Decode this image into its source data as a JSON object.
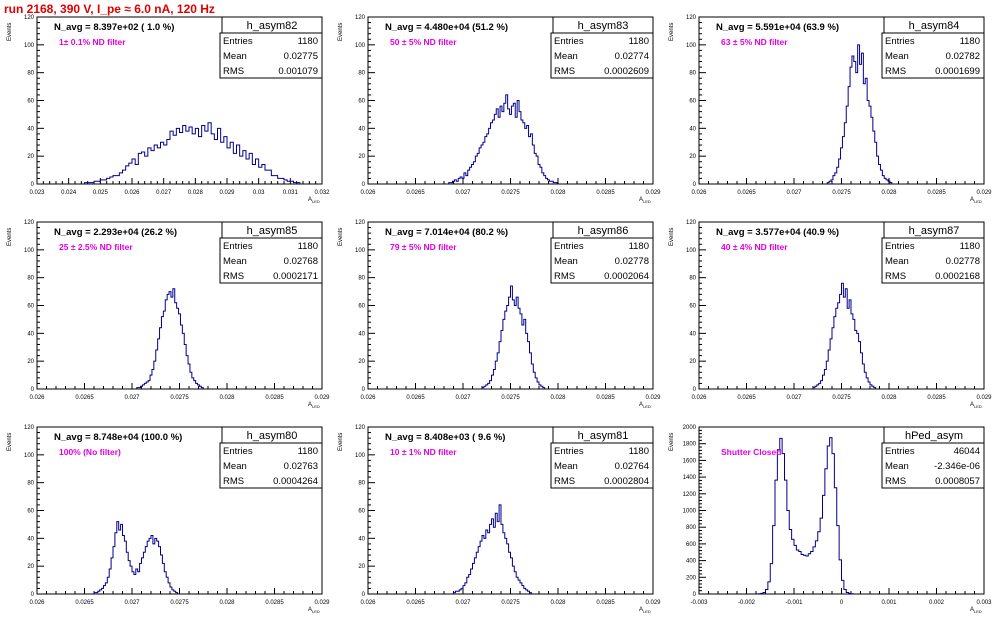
{
  "run_title": "run 2168,   390 V, I_pe ≈ 6.0 nA, 120 Hz",
  "colors": {
    "title": "#e00000",
    "annotation": "#e000e0",
    "histogram": "#00008b",
    "axis": "#000000"
  },
  "chart_data": [
    {
      "type": "histogram",
      "name": "h_asym82",
      "stats": {
        "entries_label": "Entries",
        "entries": "1180",
        "mean_label": "Mean",
        "mean": "0.02775",
        "rms_label": "RMS",
        "rms": "0.001079"
      },
      "navg": "N_avg = 8.397e+02 ( 1.0 %)",
      "annotation": "1± 0.1% ND filter",
      "ylabel": "Events",
      "xlabel": "A_LED",
      "xlim": [
        0.023,
        0.032
      ],
      "ylim": [
        0,
        120
      ],
      "xticks": [
        "0.023",
        "0.024",
        "0.025",
        "0.026",
        "0.027",
        "0.028",
        "0.029",
        "0.03",
        "0.031",
        "0.032"
      ],
      "yticks": [
        "0",
        "20",
        "40",
        "60",
        "80",
        "100",
        "120"
      ],
      "x_start": 0.0245,
      "bin_width": 0.0001,
      "counts": [
        1,
        1,
        1,
        2,
        2,
        3,
        3,
        4,
        5,
        6,
        6,
        8,
        10,
        13,
        15,
        18,
        14,
        22,
        23,
        20,
        26,
        24,
        28,
        26,
        30,
        28,
        32,
        38,
        35,
        40,
        37,
        42,
        38,
        41,
        36,
        40,
        34,
        42,
        38,
        44,
        36,
        32,
        40,
        30,
        34,
        26,
        30,
        22,
        28,
        20,
        24,
        18,
        22,
        14,
        18,
        12,
        14,
        10,
        10,
        6,
        6,
        4,
        4,
        3,
        2,
        2,
        1,
        1
      ]
    },
    {
      "type": "histogram",
      "name": "h_asym83",
      "stats": {
        "entries_label": "Entries",
        "entries": "1180",
        "mean_label": "Mean",
        "mean": "0.02774",
        "rms_label": "RMS",
        "rms": "0.0002609"
      },
      "navg": "N_avg = 4.480e+04 (51.2 %)",
      "annotation": "50 ± 5% ND filter",
      "ylabel": "Events",
      "xlabel": "A_LED",
      "xlim": [
        0.026,
        0.029
      ],
      "ylim": [
        0,
        120
      ],
      "xticks": [
        "0.026",
        "0.0265",
        "0.027",
        "0.0275",
        "0.028",
        "0.0285",
        "0.029"
      ],
      "yticks": [
        "0",
        "20",
        "40",
        "60",
        "80",
        "100",
        "120"
      ],
      "x_start": 0.02685,
      "bin_width": 2e-05,
      "counts": [
        1,
        1,
        2,
        3,
        2,
        4,
        5,
        4,
        8,
        6,
        10,
        12,
        14,
        16,
        20,
        22,
        26,
        28,
        30,
        34,
        36,
        40,
        44,
        46,
        50,
        54,
        48,
        56,
        52,
        58,
        64,
        54,
        50,
        56,
        58,
        48,
        60,
        52,
        46,
        44,
        40,
        42,
        34,
        36,
        28,
        22,
        20,
        14,
        12,
        8,
        6,
        4,
        3,
        2,
        2,
        1,
        1
      ]
    },
    {
      "type": "histogram",
      "name": "h_asym84",
      "stats": {
        "entries_label": "Entries",
        "entries": "1180",
        "mean_label": "Mean",
        "mean": "0.02782",
        "rms_label": "RMS",
        "rms": "0.0001699"
      },
      "navg": "N_avg = 5.591e+04 (63.9 %)",
      "annotation": "63 ± 5% ND filter",
      "ylabel": "Events",
      "xlabel": "A_LED",
      "xlim": [
        0.026,
        0.029
      ],
      "ylim": [
        0,
        120
      ],
      "xticks": [
        "0.026",
        "0.0265",
        "0.027",
        "0.0275",
        "0.028",
        "0.0285",
        "0.029"
      ],
      "yticks": [
        "0",
        "20",
        "40",
        "60",
        "80",
        "100",
        "120"
      ],
      "x_start": 0.02735,
      "bin_width": 2e-05,
      "counts": [
        1,
        2,
        3,
        6,
        8,
        12,
        18,
        26,
        34,
        44,
        56,
        70,
        84,
        92,
        88,
        80,
        100,
        86,
        94,
        72,
        76,
        60,
        56,
        48,
        38,
        30,
        20,
        14,
        10,
        6,
        4,
        3,
        2,
        1
      ]
    },
    {
      "type": "histogram",
      "name": "h_asym85",
      "stats": {
        "entries_label": "Entries",
        "entries": "1180",
        "mean_label": "Mean",
        "mean": "0.02768",
        "rms_label": "RMS",
        "rms": "0.0002171"
      },
      "navg": "N_avg = 2.293e+04 (26.2 %)",
      "annotation": "25 ± 2.5% ND filter",
      "ylabel": "Events",
      "xlabel": "A_LED",
      "xlim": [
        0.026,
        0.029
      ],
      "ylim": [
        0,
        120
      ],
      "xticks": [
        "0.026",
        "0.0265",
        "0.027",
        "0.0275",
        "0.028",
        "0.0285",
        "0.029"
      ],
      "yticks": [
        "0",
        "20",
        "40",
        "60",
        "80",
        "100",
        "120"
      ],
      "x_start": 0.02705,
      "bin_width": 2e-05,
      "counts": [
        1,
        1,
        2,
        3,
        4,
        5,
        6,
        10,
        14,
        20,
        28,
        36,
        44,
        52,
        56,
        64,
        68,
        70,
        66,
        72,
        62,
        58,
        54,
        46,
        40,
        32,
        24,
        18,
        12,
        8,
        6,
        4,
        3,
        2,
        1
      ]
    },
    {
      "type": "histogram",
      "name": "h_asym86",
      "stats": {
        "entries_label": "Entries",
        "entries": "1180",
        "mean_label": "Mean",
        "mean": "0.02778",
        "rms_label": "RMS",
        "rms": "0.0002064"
      },
      "navg": "N_avg = 7.014e+04 (80.2 %)",
      "annotation": "79 ± 5% ND filter",
      "ylabel": "Events",
      "xlabel": "A_LED",
      "xlim": [
        0.026,
        0.029
      ],
      "ylim": [
        0,
        120
      ],
      "xticks": [
        "0.026",
        "0.0265",
        "0.027",
        "0.0275",
        "0.028",
        "0.0285",
        "0.029"
      ],
      "yticks": [
        "0",
        "20",
        "40",
        "60",
        "80",
        "100",
        "120"
      ],
      "x_start": 0.0272,
      "bin_width": 2e-05,
      "counts": [
        1,
        2,
        3,
        4,
        6,
        10,
        14,
        20,
        26,
        34,
        42,
        50,
        56,
        60,
        66,
        74,
        64,
        60,
        66,
        58,
        54,
        46,
        50,
        40,
        34,
        26,
        18,
        12,
        8,
        5,
        3,
        2,
        1
      ]
    },
    {
      "type": "histogram",
      "name": "h_asym87",
      "stats": {
        "entries_label": "Entries",
        "entries": "1180",
        "mean_label": "Mean",
        "mean": "0.02778",
        "rms_label": "RMS",
        "rms": "0.0002168"
      },
      "navg": "N_avg = 3.577e+04 (40.9 %)",
      "annotation": "40 ± 4% ND filter",
      "ylabel": "Events",
      "xlabel": "A_LED",
      "xlim": [
        0.026,
        0.029
      ],
      "ylim": [
        0,
        120
      ],
      "xticks": [
        "0.026",
        "0.0265",
        "0.027",
        "0.0275",
        "0.028",
        "0.0285",
        "0.029"
      ],
      "yticks": [
        "0",
        "20",
        "40",
        "60",
        "80",
        "100",
        "120"
      ],
      "x_start": 0.0272,
      "bin_width": 2e-05,
      "counts": [
        1,
        2,
        3,
        4,
        6,
        10,
        14,
        20,
        28,
        36,
        44,
        52,
        58,
        62,
        68,
        76,
        66,
        72,
        58,
        64,
        54,
        50,
        42,
        40,
        34,
        26,
        18,
        12,
        8,
        5,
        3,
        2,
        1
      ]
    },
    {
      "type": "histogram",
      "name": "h_asym80",
      "stats": {
        "entries_label": "Entries",
        "entries": "1180",
        "mean_label": "Mean",
        "mean": "0.02763",
        "rms_label": "RMS",
        "rms": "0.0004264"
      },
      "navg": "N_avg = 8.748e+04 (100.0 %)",
      "annotation": "100% (No filter)",
      "ylabel": "Events",
      "xlabel": "A_LED",
      "xlim": [
        0.026,
        0.029
      ],
      "ylim": [
        0,
        120
      ],
      "xticks": [
        "0.026",
        "0.0265",
        "0.027",
        "0.0275",
        "0.028",
        "0.0285",
        "0.029"
      ],
      "yticks": [
        "0",
        "20",
        "40",
        "60",
        "80",
        "100",
        "120"
      ],
      "x_start": 0.0266,
      "bin_width": 2e-05,
      "counts": [
        1,
        1,
        2,
        3,
        4,
        6,
        8,
        12,
        18,
        26,
        34,
        44,
        52,
        46,
        50,
        42,
        38,
        30,
        24,
        20,
        16,
        14,
        18,
        16,
        22,
        26,
        30,
        34,
        38,
        40,
        42,
        36,
        40,
        38,
        34,
        28,
        22,
        16,
        12,
        8,
        5,
        3,
        2,
        1
      ]
    },
    {
      "type": "histogram",
      "name": "h_asym81",
      "stats": {
        "entries_label": "Entries",
        "entries": "1180",
        "mean_label": "Mean",
        "mean": "0.02764",
        "rms_label": "RMS",
        "rms": "0.0002804"
      },
      "navg": "N_avg = 8.408e+03 ( 9.6 %)",
      "annotation": "10 ± 1% ND filter",
      "ylabel": "Events",
      "xlabel": "A_LED",
      "xlim": [
        0.026,
        0.029
      ],
      "ylim": [
        0,
        120
      ],
      "xticks": [
        "0.026",
        "0.0265",
        "0.027",
        "0.0275",
        "0.028",
        "0.0285",
        "0.029"
      ],
      "yticks": [
        "0",
        "20",
        "40",
        "60",
        "80",
        "100",
        "120"
      ],
      "x_start": 0.0269,
      "bin_width": 2e-05,
      "counts": [
        1,
        2,
        2,
        3,
        4,
        6,
        8,
        12,
        14,
        18,
        22,
        26,
        30,
        34,
        38,
        42,
        40,
        46,
        44,
        50,
        54,
        48,
        58,
        52,
        64,
        50,
        44,
        40,
        36,
        30,
        26,
        20,
        16,
        12,
        10,
        8,
        6,
        4,
        3,
        2,
        1
      ]
    },
    {
      "type": "histogram",
      "name": "hPed_asym",
      "stats": {
        "entries_label": "Entries",
        "entries": "46044",
        "mean_label": "Mean",
        "mean": "-2.346e-06",
        "rms_label": "RMS",
        "rms": "0.0008057"
      },
      "navg": "",
      "annotation": "Shutter Closed",
      "ylabel": "Events",
      "xlabel": "A_LED",
      "xlim": [
        -0.003,
        0.003
      ],
      "ylim": [
        0,
        2200
      ],
      "xticks": [
        "-0.003",
        "-0.002",
        "-0.001",
        "0",
        "0.001",
        "0.002",
        "0.003"
      ],
      "yticks": [
        "0",
        "200",
        "400",
        "600",
        "800",
        "1000",
        "1200",
        "1400",
        "1600",
        "1800",
        "2000"
      ],
      "x_start": -0.00175,
      "bin_width": 5e-05,
      "counts": [
        4,
        8,
        20,
        60,
        160,
        400,
        900,
        1500,
        1900,
        2050,
        1850,
        1500,
        1100,
        850,
        720,
        640,
        580,
        560,
        520,
        510,
        500,
        530,
        560,
        620,
        700,
        820,
        1000,
        1300,
        1650,
        1950,
        2060,
        1850,
        1400,
        900,
        450,
        180,
        60,
        20,
        8,
        4
      ]
    }
  ]
}
